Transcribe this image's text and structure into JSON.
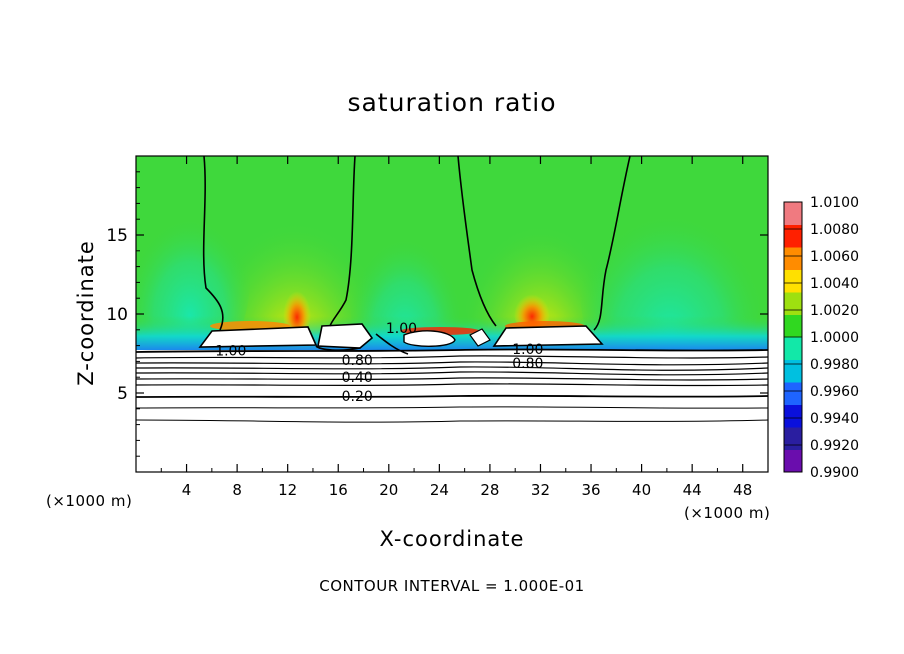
{
  "chart_data": {
    "type": "heatmap",
    "title": "saturation ratio",
    "xlabel": "X-coordinate",
    "ylabel": "Z-coordinate",
    "x_unit_label": "(×1000 m)",
    "y_unit_label": "(×1000 m)",
    "x_ticks": [
      4,
      8,
      12,
      16,
      20,
      24,
      28,
      32,
      36,
      40,
      44,
      48
    ],
    "y_ticks": [
      5,
      10,
      15
    ],
    "xlim": [
      0,
      50
    ],
    "ylim": [
      0,
      20
    ],
    "contour_interval_text": "CONTOUR INTERVAL = 1.000E-01",
    "contour_labels": [
      {
        "text": "1.00",
        "x": 7.5,
        "z": 7.7
      },
      {
        "text": "0.80",
        "x": 17.5,
        "z": 7.1
      },
      {
        "text": "0.40",
        "x": 17.5,
        "z": 6.0
      },
      {
        "text": "0.20",
        "x": 17.5,
        "z": 4.8
      },
      {
        "text": "1.00",
        "x": 21.0,
        "z": 9.1
      },
      {
        "text": "1.00",
        "x": 31.0,
        "z": 7.8
      },
      {
        "text": "0.80",
        "x": 31.0,
        "z": 6.9
      }
    ],
    "colorbar": {
      "ticks": [
        "1.0100",
        "1.0080",
        "1.0060",
        "1.0040",
        "1.0020",
        "1.0000",
        "0.9980",
        "0.9960",
        "0.9940",
        "0.9920",
        "0.9900"
      ],
      "range": [
        0.99,
        1.01
      ],
      "colors": [
        "#6a0dad",
        "#2a1ea0",
        "#0a10dc",
        "#1e64ff",
        "#00c0e0",
        "#12e8a8",
        "#30d820",
        "#9ee010",
        "#ffe000",
        "#ff8c00",
        "#ff2000",
        "#f07a80"
      ]
    },
    "field_colors": {
      "background_green": "#3fd83c",
      "cloud_white": "#ffffff",
      "contour": "#000000"
    }
  }
}
